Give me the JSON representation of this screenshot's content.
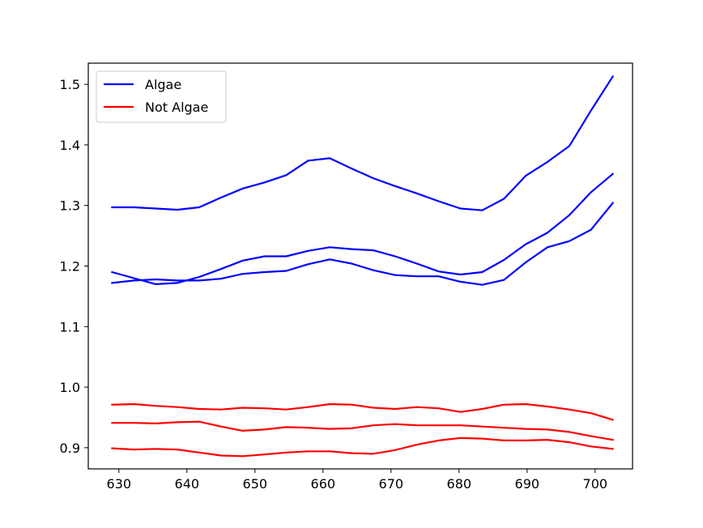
{
  "chart_data": {
    "type": "line",
    "title": "",
    "xlabel": "",
    "ylabel": "",
    "xlim": [
      625.5,
      705.5
    ],
    "ylim": [
      0.865,
      1.535
    ],
    "xticks": [
      630,
      640,
      650,
      660,
      670,
      680,
      690,
      700
    ],
    "yticks": [
      0.9,
      1.0,
      1.1,
      1.2,
      1.3,
      1.4,
      1.5
    ],
    "ytick_labels": [
      "0.9",
      "1.0",
      "1.1",
      "1.2",
      "1.3",
      "1.4",
      "1.5"
    ],
    "grid": false,
    "legend": {
      "placement": "upper-left",
      "entries": [
        {
          "label": "Algae",
          "color": "#0000ff"
        },
        {
          "label": "Not Algae",
          "color": "#ff0000"
        }
      ]
    },
    "x": [
      629,
      632.2,
      635.4,
      638.6,
      641.8,
      645,
      648.2,
      651.4,
      654.6,
      657.8,
      661,
      664.2,
      667.4,
      670.6,
      673.8,
      677,
      680.2,
      683.4,
      686.6,
      689.8,
      693,
      696.2,
      699.4,
      702.6
    ],
    "series": [
      {
        "group": "Algae",
        "color": "#0000ff",
        "values": [
          1.297,
          1.297,
          1.295,
          1.293,
          1.297,
          1.313,
          1.328,
          1.338,
          1.35,
          1.374,
          1.378,
          1.361,
          1.345,
          1.332,
          1.32,
          1.307,
          1.295,
          1.292,
          1.311,
          1.349,
          1.372,
          1.398,
          1.457,
          1.513
        ]
      },
      {
        "group": "Algae",
        "color": "#0000ff",
        "values": [
          1.19,
          1.18,
          1.17,
          1.172,
          1.182,
          1.195,
          1.209,
          1.216,
          1.216,
          1.225,
          1.231,
          1.228,
          1.226,
          1.216,
          1.204,
          1.191,
          1.186,
          1.19,
          1.21,
          1.236,
          1.255,
          1.284,
          1.322,
          1.352
        ]
      },
      {
        "group": "Algae",
        "color": "#0000ff",
        "values": [
          1.172,
          1.176,
          1.178,
          1.176,
          1.176,
          1.179,
          1.187,
          1.19,
          1.192,
          1.203,
          1.211,
          1.204,
          1.193,
          1.185,
          1.183,
          1.183,
          1.174,
          1.169,
          1.177,
          1.206,
          1.231,
          1.241,
          1.26,
          1.304
        ]
      },
      {
        "group": "Not Algae",
        "color": "#ff0000",
        "values": [
          0.971,
          0.972,
          0.969,
          0.967,
          0.964,
          0.963,
          0.966,
          0.965,
          0.963,
          0.967,
          0.972,
          0.971,
          0.966,
          0.964,
          0.967,
          0.965,
          0.959,
          0.964,
          0.971,
          0.972,
          0.968,
          0.963,
          0.957,
          0.946
        ]
      },
      {
        "group": "Not Algae",
        "color": "#ff0000",
        "values": [
          0.941,
          0.941,
          0.94,
          0.942,
          0.943,
          0.935,
          0.928,
          0.93,
          0.934,
          0.933,
          0.931,
          0.932,
          0.937,
          0.939,
          0.937,
          0.937,
          0.937,
          0.935,
          0.933,
          0.931,
          0.93,
          0.926,
          0.919,
          0.913
        ]
      },
      {
        "group": "Not Algae",
        "color": "#ff0000",
        "values": [
          0.899,
          0.897,
          0.898,
          0.897,
          0.892,
          0.887,
          0.886,
          0.889,
          0.892,
          0.894,
          0.894,
          0.891,
          0.89,
          0.896,
          0.905,
          0.912,
          0.916,
          0.915,
          0.912,
          0.912,
          0.913,
          0.909,
          0.902,
          0.898
        ]
      }
    ]
  }
}
